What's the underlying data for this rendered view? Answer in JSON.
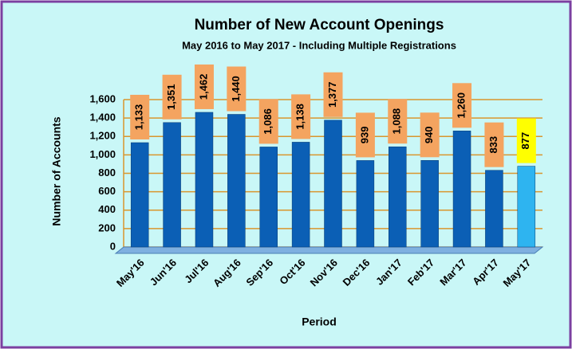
{
  "chart_data": {
    "type": "bar",
    "title": "Number of New Account Openings",
    "subtitle": "May 2016 to May 2017 - Including Multiple Registrations",
    "x_label": "Period",
    "y_label": "Number of Accounts",
    "categories": [
      "May'16",
      "Jun'16",
      "Jul'16",
      "Aug'16",
      "Sep'16",
      "Oct'16",
      "Nov'16",
      "Dec'16",
      "Jan'17",
      "Feb'17",
      "Mar'17",
      "Apr'17",
      "May'17"
    ],
    "values": [
      1133,
      1351,
      1462,
      1440,
      1086,
      1138,
      1377,
      939,
      1088,
      940,
      1260,
      833,
      877
    ],
    "value_labels": [
      "1,133",
      "1,351",
      "1,462",
      "1,440",
      "1,086",
      "1,138",
      "1,377",
      "939",
      "1,088",
      "940",
      "1,260",
      "833",
      "877"
    ],
    "colors": [
      "#0b5fb5",
      "#0b5fb5",
      "#0b5fb5",
      "#0b5fb5",
      "#0b5fb5",
      "#0b5fb5",
      "#0b5fb5",
      "#0b5fb5",
      "#0b5fb5",
      "#0b5fb5",
      "#0b5fb5",
      "#0b5fb5",
      "#2eb4f0"
    ],
    "label_colors": [
      "#f4a460",
      "#f4a460",
      "#f4a460",
      "#f4a460",
      "#f4a460",
      "#f4a460",
      "#f4a460",
      "#f4a460",
      "#f4a460",
      "#f4a460",
      "#f4a460",
      "#f4a460",
      "#ffff00"
    ],
    "ylim": [
      0,
      1600
    ],
    "yticks": [
      0,
      200,
      400,
      600,
      800,
      {
        "value": 1000,
        "label": "1,000"
      },
      {
        "value": 1200,
        "label": "1,200"
      },
      {
        "value": 1400,
        "label": "1,400"
      },
      {
        "value": 1600,
        "label": "1,600"
      }
    ],
    "grid": true
  }
}
